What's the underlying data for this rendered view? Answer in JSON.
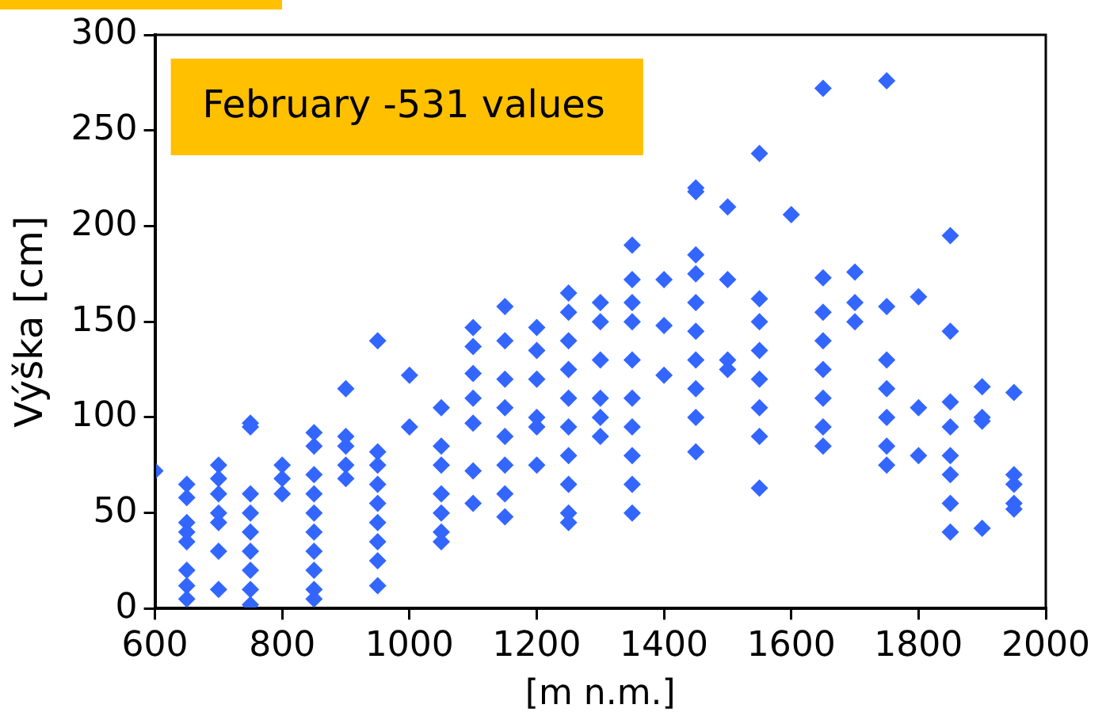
{
  "chart_data": {
    "type": "scatter",
    "xlabel": "[m n.m.]",
    "ylabel": "Výška [cm]",
    "annotations": [
      "February -531 values"
    ],
    "xlim": [
      600,
      2000
    ],
    "xticks": [
      600,
      800,
      1000,
      1200,
      1400,
      1600,
      1800,
      2000
    ],
    "ylim": [
      0,
      300
    ],
    "yticks": [
      0,
      50,
      100,
      150,
      200,
      250,
      300
    ],
    "grid": false,
    "legend": false,
    "marker": "diamond",
    "series": [
      {
        "color": "#3366ff",
        "x": [
          600,
          650,
          650,
          650,
          650,
          650,
          650,
          650,
          650,
          700,
          700,
          700,
          700,
          700,
          700,
          700,
          750,
          750,
          750,
          750,
          750,
          750,
          750,
          750,
          750,
          800,
          800,
          800,
          850,
          850,
          850,
          850,
          850,
          850,
          850,
          850,
          850,
          850,
          900,
          900,
          900,
          900,
          900,
          950,
          950,
          950,
          950,
          950,
          950,
          950,
          950,
          950,
          1000,
          1000,
          1050,
          1050,
          1050,
          1050,
          1050,
          1050,
          1050,
          1100,
          1100,
          1100,
          1100,
          1100,
          1100,
          1100,
          1150,
          1150,
          1150,
          1150,
          1150,
          1150,
          1150,
          1150,
          1200,
          1200,
          1200,
          1200,
          1200,
          1200,
          1250,
          1250,
          1250,
          1250,
          1250,
          1250,
          1250,
          1250,
          1250,
          1250,
          1300,
          1300,
          1300,
          1300,
          1300,
          1300,
          1350,
          1350,
          1350,
          1350,
          1350,
          1350,
          1350,
          1350,
          1350,
          1350,
          1400,
          1400,
          1400,
          1450,
          1450,
          1450,
          1450,
          1450,
          1450,
          1450,
          1450,
          1450,
          1450,
          1500,
          1500,
          1500,
          1500,
          1550,
          1550,
          1550,
          1550,
          1550,
          1550,
          1550,
          1550,
          1600,
          1650,
          1650,
          1650,
          1650,
          1650,
          1650,
          1650,
          1650,
          1700,
          1700,
          1700,
          1750,
          1750,
          1750,
          1750,
          1750,
          1750,
          1750,
          1800,
          1800,
          1800,
          1850,
          1850,
          1850,
          1850,
          1850,
          1850,
          1850,
          1850,
          1900,
          1900,
          1900,
          1900,
          1950,
          1950,
          1950,
          1950,
          1950
        ],
        "values": [
          72,
          65,
          58,
          45,
          40,
          35,
          20,
          12,
          5,
          75,
          68,
          60,
          50,
          45,
          30,
          10,
          97,
          95,
          60,
          50,
          40,
          30,
          20,
          10,
          2,
          75,
          68,
          60,
          92,
          85,
          70,
          60,
          50,
          40,
          30,
          20,
          10,
          5,
          115,
          90,
          85,
          75,
          68,
          140,
          82,
          75,
          65,
          55,
          45,
          35,
          25,
          12,
          122,
          95,
          105,
          85,
          75,
          60,
          50,
          40,
          35,
          147,
          137,
          123,
          110,
          97,
          72,
          55,
          158,
          140,
          120,
          105,
          90,
          75,
          60,
          48,
          147,
          135,
          120,
          100,
          95,
          75,
          165,
          155,
          140,
          125,
          110,
          95,
          80,
          65,
          50,
          45,
          160,
          150,
          130,
          110,
          100,
          90,
          190,
          172,
          160,
          150,
          130,
          110,
          95,
          80,
          65,
          50,
          172,
          148,
          122,
          220,
          218,
          185,
          175,
          160,
          145,
          130,
          115,
          100,
          82,
          210,
          172,
          130,
          125,
          238,
          162,
          150,
          135,
          120,
          105,
          90,
          63,
          206,
          272,
          173,
          155,
          140,
          125,
          110,
          95,
          85,
          176,
          160,
          150,
          276,
          158,
          130,
          115,
          100,
          85,
          75,
          163,
          105,
          80,
          195,
          145,
          108,
          95,
          80,
          70,
          55,
          40,
          116,
          100,
          98,
          42,
          113,
          70,
          65,
          55,
          52
        ]
      }
    ]
  }
}
